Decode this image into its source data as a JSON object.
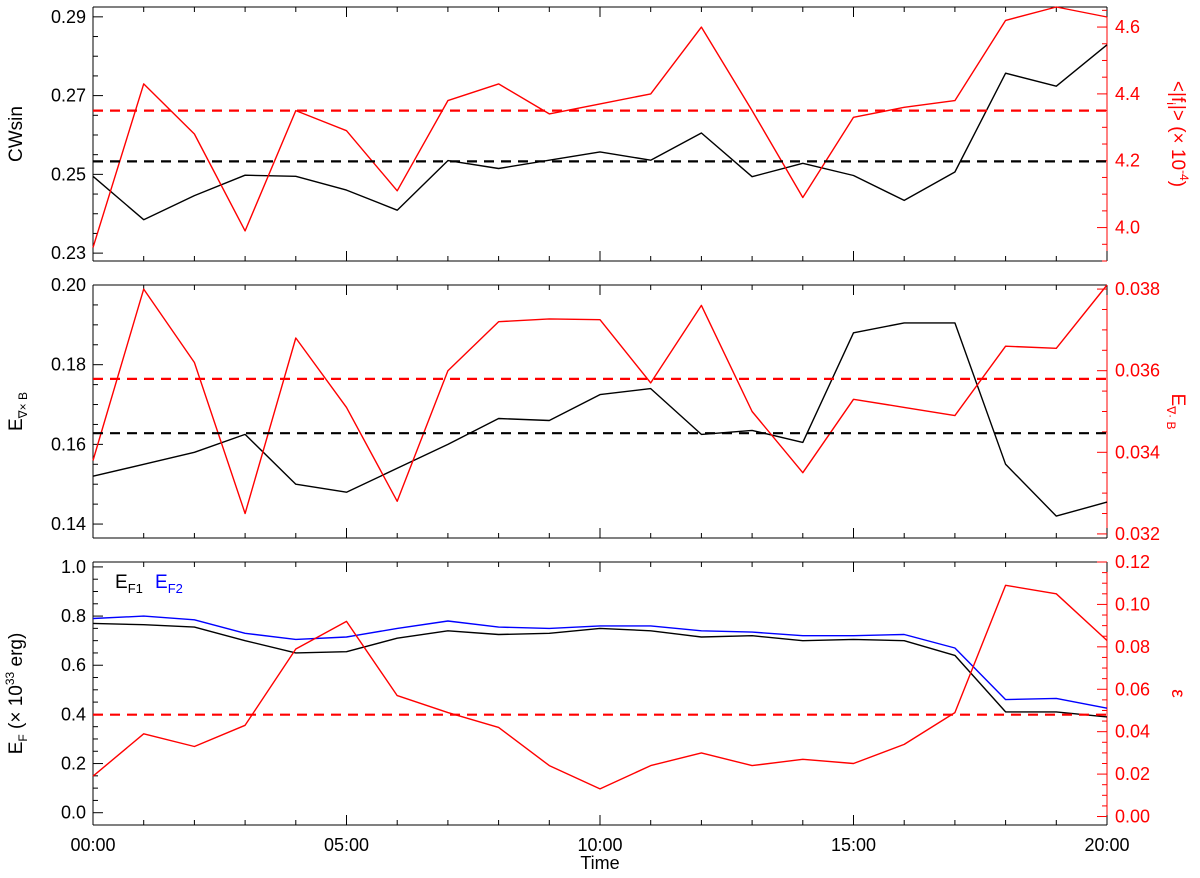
{
  "chart_data": [
    {
      "type": "line",
      "xlabel": "",
      "xlim": [
        0,
        20
      ],
      "x_tick_labels": [
        "00:00",
        "05:00",
        "10:00",
        "15:00",
        "20:00"
      ],
      "x_tick_values": [
        0,
        5,
        10,
        15,
        20
      ],
      "grid": false,
      "left_axis": {
        "label": "CWsin",
        "color": "#000000",
        "ylim": [
          0.228,
          0.2925
        ],
        "ticks": [
          0.23,
          0.25,
          0.27,
          0.29
        ],
        "tick_labels": [
          "0.23",
          "0.25",
          "0.27",
          "0.29"
        ]
      },
      "right_axis": {
        "label_parts": [
          "<|f",
          "i",
          "|> (× 10",
          "-4",
          ")"
        ],
        "color": "#ff0000",
        "ylim": [
          3.9,
          4.66
        ],
        "ticks": [
          4.0,
          4.2,
          4.4,
          4.6
        ],
        "tick_labels": [
          "4.0",
          "4.2",
          "4.4",
          "4.6"
        ]
      },
      "series": [
        {
          "axis": "left",
          "color": "#000000",
          "style": "solid",
          "x": [
            0,
            1,
            2,
            3,
            4,
            5,
            6,
            7,
            8,
            9,
            10,
            11,
            12,
            13,
            14,
            15,
            16,
            17,
            18,
            19,
            20
          ],
          "values": [
            0.2495,
            0.2385,
            0.2446,
            0.2498,
            0.2495,
            0.246,
            0.2409,
            0.2535,
            0.2515,
            0.2536,
            0.2557,
            0.2536,
            0.2605,
            0.2494,
            0.2528,
            0.2497,
            0.2434,
            0.2506,
            0.2757,
            0.2724,
            0.2829
          ]
        },
        {
          "axis": "right",
          "color": "#ff0000",
          "style": "solid",
          "x": [
            0,
            1,
            2,
            3,
            4,
            5,
            6,
            7,
            8,
            9,
            10,
            11,
            12,
            13,
            14,
            15,
            16,
            17,
            18,
            19,
            20
          ],
          "values": [
            3.94,
            4.43,
            4.28,
            3.99,
            4.35,
            4.29,
            4.11,
            4.38,
            4.43,
            4.34,
            4.37,
            4.4,
            4.6,
            4.35,
            4.09,
            4.33,
            4.36,
            4.38,
            4.62,
            4.66,
            4.63
          ]
        },
        {
          "axis": "left",
          "color": "#000000",
          "style": "dashed",
          "x": [
            0,
            20
          ],
          "values": [
            0.2533,
            0.2533
          ]
        },
        {
          "axis": "right",
          "color": "#ff0000",
          "style": "dashed",
          "x": [
            0,
            20
          ],
          "values": [
            4.35,
            4.35
          ]
        }
      ]
    },
    {
      "type": "line",
      "xlabel": "",
      "xlim": [
        0,
        20
      ],
      "x_tick_labels": [
        "00:00",
        "05:00",
        "10:00",
        "15:00",
        "20:00"
      ],
      "x_tick_values": [
        0,
        5,
        10,
        15,
        20
      ],
      "grid": false,
      "left_axis": {
        "label_parts": [
          "E",
          "∇× B"
        ],
        "color": "#000000",
        "ylim": [
          0.1365,
          0.2
        ],
        "ticks": [
          0.14,
          0.16,
          0.18,
          0.2
        ],
        "tick_labels": [
          "0.14",
          "0.16",
          "0.18",
          "0.20"
        ]
      },
      "right_axis": {
        "label_parts": [
          "E",
          "∇· B"
        ],
        "color": "#ff0000",
        "ylim": [
          0.0319,
          0.0381
        ],
        "ticks": [
          0.032,
          0.034,
          0.036,
          0.038
        ],
        "tick_labels": [
          "0.032",
          "0.034",
          "0.036",
          "0.038"
        ]
      },
      "series": [
        {
          "axis": "left",
          "color": "#000000",
          "style": "solid",
          "x": [
            0,
            1,
            2,
            3,
            4,
            5,
            6,
            7,
            8,
            9,
            10,
            11,
            12,
            13,
            14,
            15,
            16,
            17,
            18,
            19,
            20
          ],
          "values": [
            0.152,
            0.155,
            0.158,
            0.1625,
            0.15,
            0.148,
            0.154,
            0.16,
            0.1665,
            0.166,
            0.1725,
            0.174,
            0.1625,
            0.1635,
            0.1605,
            0.188,
            0.1905,
            0.1905,
            0.155,
            0.142,
            0.1455
          ]
        },
        {
          "axis": "right",
          "color": "#ff0000",
          "style": "solid",
          "x": [
            0,
            1,
            2,
            3,
            4,
            5,
            6,
            7,
            8,
            9,
            10,
            11,
            12,
            13,
            14,
            15,
            16,
            17,
            18,
            19,
            20
          ],
          "values": [
            0.0338,
            0.038,
            0.0362,
            0.0325,
            0.0368,
            0.0351,
            0.0328,
            0.036,
            0.0372,
            0.03727,
            0.03725,
            0.0357,
            0.0376,
            0.035,
            0.0335,
            0.0353,
            0.0351,
            0.0349,
            0.0366,
            0.03655,
            0.0381
          ]
        },
        {
          "axis": "left",
          "color": "#000000",
          "style": "dashed",
          "x": [
            0,
            20
          ],
          "values": [
            0.1628,
            0.1628
          ]
        },
        {
          "axis": "right",
          "color": "#ff0000",
          "style": "dashed",
          "x": [
            0,
            20
          ],
          "values": [
            0.0358,
            0.0358
          ]
        }
      ]
    },
    {
      "type": "line",
      "xlabel": "Time",
      "xlim": [
        0,
        20
      ],
      "x_tick_labels": [
        "00:00",
        "05:00",
        "10:00",
        "15:00",
        "20:00"
      ],
      "x_tick_values": [
        0,
        5,
        10,
        15,
        20
      ],
      "grid": false,
      "legend_position": "top-left",
      "legend": [
        {
          "text": "E",
          "sub": "F1",
          "color": "#000000"
        },
        {
          "text": "E",
          "sub": "F2",
          "color": "#0000ff"
        }
      ],
      "left_axis": {
        "label_parts": [
          "E",
          "F",
          " (× 10",
          "33",
          " erg)"
        ],
        "color": "#000000",
        "ylim": [
          -0.05,
          1.02
        ],
        "ticks": [
          0.0,
          0.2,
          0.4,
          0.6,
          0.8,
          1.0
        ],
        "tick_labels": [
          "0.0",
          "0.2",
          "0.4",
          "0.6",
          "0.8",
          "1.0"
        ]
      },
      "right_axis": {
        "label": "ε",
        "color": "#ff0000",
        "ylim": [
          -0.004,
          0.12
        ],
        "ticks": [
          0.0,
          0.02,
          0.04,
          0.06,
          0.08,
          0.1,
          0.12
        ],
        "tick_labels": [
          "0.00",
          "0.02",
          "0.04",
          "0.06",
          "0.08",
          "0.10",
          "0.12"
        ]
      },
      "series": [
        {
          "name": "EF1",
          "axis": "left",
          "color": "#000000",
          "style": "solid",
          "x": [
            0,
            1,
            2,
            3,
            4,
            5,
            6,
            7,
            8,
            9,
            10,
            11,
            12,
            13,
            14,
            15,
            16,
            17,
            18,
            19,
            20
          ],
          "values": [
            0.77,
            0.765,
            0.755,
            0.7,
            0.65,
            0.655,
            0.71,
            0.74,
            0.725,
            0.73,
            0.75,
            0.74,
            0.715,
            0.72,
            0.7,
            0.705,
            0.7,
            0.64,
            0.41,
            0.41,
            0.39
          ]
        },
        {
          "name": "EF2",
          "axis": "left",
          "color": "#0000ff",
          "style": "solid",
          "x": [
            0,
            1,
            2,
            3,
            4,
            5,
            6,
            7,
            8,
            9,
            10,
            11,
            12,
            13,
            14,
            15,
            16,
            17,
            18,
            19,
            20
          ],
          "values": [
            0.79,
            0.8,
            0.785,
            0.73,
            0.705,
            0.715,
            0.75,
            0.78,
            0.755,
            0.75,
            0.76,
            0.76,
            0.74,
            0.735,
            0.72,
            0.72,
            0.725,
            0.67,
            0.46,
            0.465,
            0.425
          ]
        },
        {
          "axis": "right",
          "color": "#ff0000",
          "style": "solid",
          "x": [
            0,
            1,
            2,
            3,
            4,
            5,
            6,
            7,
            8,
            9,
            10,
            11,
            12,
            13,
            14,
            15,
            16,
            17,
            18,
            19,
            20
          ],
          "values": [
            0.019,
            0.039,
            0.033,
            0.043,
            0.079,
            0.092,
            0.057,
            0.049,
            0.042,
            0.024,
            0.013,
            0.024,
            0.03,
            0.024,
            0.027,
            0.025,
            0.034,
            0.049,
            0.109,
            0.105,
            0.083
          ]
        },
        {
          "axis": "right",
          "color": "#ff0000",
          "style": "dashed",
          "x": [
            0,
            20
          ],
          "values": [
            0.048,
            0.048
          ]
        }
      ]
    }
  ]
}
